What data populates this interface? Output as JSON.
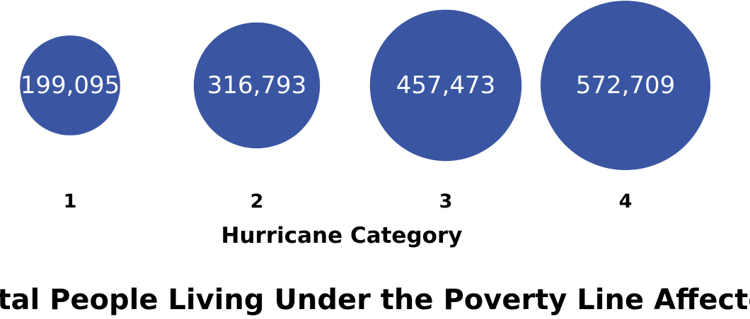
{
  "chart_data": {
    "type": "bubble",
    "title": "Total People Living Under the Poverty Line Affected",
    "xlabel": "Hurricane Category",
    "ylabel": "",
    "grid": false,
    "legend": "none",
    "categories": [
      "1",
      "2",
      "3",
      "4"
    ],
    "values": [
      199095,
      316793,
      457473,
      572709
    ],
    "labels": [
      "199,095",
      "316,793",
      "457,473",
      "572,709"
    ],
    "colors": {
      "bubble": "#3A56A2",
      "bubble_text": "#FFFFFF",
      "text": "#000000"
    }
  }
}
